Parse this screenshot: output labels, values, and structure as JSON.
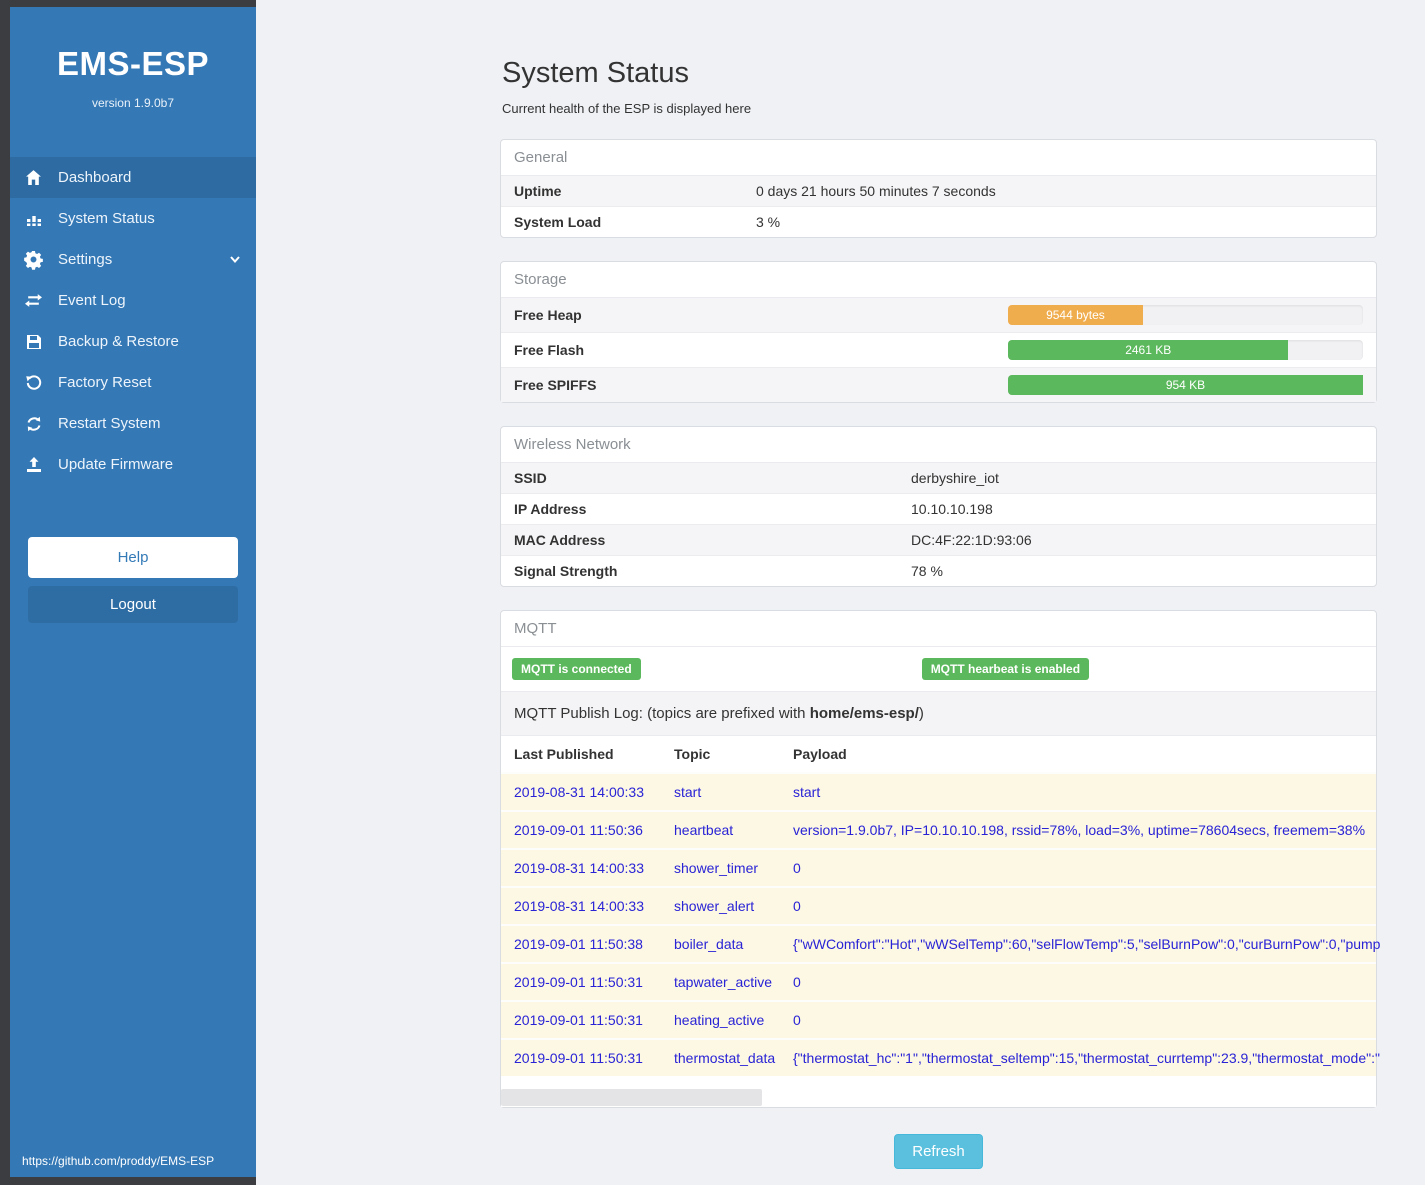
{
  "colors": {
    "sidebar_blue": "#3478b5",
    "sidebar_active": "#2d6ba2",
    "frame_dark": "#3b3d40",
    "success_green": "#5cb85c",
    "warning_orange": "#f0ad4e",
    "info_blue": "#5bc0de",
    "log_row_bg": "#fcf8e3",
    "log_text_blue": "#2a23d6"
  },
  "sidebar": {
    "brand": "EMS-ESP",
    "version": "version 1.9.0b7",
    "items": [
      {
        "label": "Dashboard",
        "icon": "home-icon"
      },
      {
        "label": "System Status",
        "icon": "system-status-icon"
      },
      {
        "label": "Settings",
        "icon": "gear-icon"
      },
      {
        "label": "Event Log",
        "icon": "exchange-icon"
      },
      {
        "label": "Backup & Restore",
        "icon": "save-icon"
      },
      {
        "label": "Factory Reset",
        "icon": "undo-icon"
      },
      {
        "label": "Restart System",
        "icon": "refresh-icon"
      },
      {
        "label": "Update Firmware",
        "icon": "upload-icon"
      }
    ],
    "help_label": "Help",
    "logout_label": "Logout",
    "footer_link": "https://github.com/proddy/EMS-ESP"
  },
  "page": {
    "title": "System Status",
    "subtitle": "Current health of the ESP is displayed here",
    "refresh_label": "Refresh"
  },
  "general": {
    "header": "General",
    "rows": [
      {
        "label": "Uptime",
        "value": "0 days 21 hours 50 minutes 7 seconds"
      },
      {
        "label": "System Load",
        "value": "3 %"
      }
    ]
  },
  "storage": {
    "header": "Storage",
    "rows": [
      {
        "label": "Free Heap",
        "bar_label": "9544 bytes",
        "percent": 38,
        "color": "#f0ad4e"
      },
      {
        "label": "Free Flash",
        "bar_label": "2461 KB",
        "percent": 79,
        "color": "#5cb85c"
      },
      {
        "label": "Free SPIFFS",
        "bar_label": "954 KB",
        "percent": 100,
        "color": "#5cb85c"
      }
    ]
  },
  "wireless": {
    "header": "Wireless Network",
    "rows": [
      {
        "label": "SSID",
        "value": "derbyshire_iot"
      },
      {
        "label": "IP Address",
        "value": "10.10.10.198"
      },
      {
        "label": "MAC Address",
        "value": "DC:4F:22:1D:93:06"
      },
      {
        "label": "Signal Strength",
        "value": "78 %"
      }
    ]
  },
  "mqtt": {
    "header": "MQTT",
    "badges": [
      "MQTT is connected",
      "MQTT hearbeat is enabled"
    ],
    "publish_log_prefix": "MQTT Publish Log: (topics are prefixed with ",
    "publish_log_bold": "home/ems-esp/",
    "publish_log_suffix": ")",
    "table": {
      "columns": [
        "Last Published",
        "Topic",
        "Payload"
      ],
      "rows": [
        [
          "2019-08-31 14:00:33",
          "start",
          "start"
        ],
        [
          "2019-09-01 11:50:36",
          "heartbeat",
          "version=1.9.0b7, IP=10.10.10.198, rssid=78%, load=3%, uptime=78604secs, freemem=38%"
        ],
        [
          "2019-08-31 14:00:33",
          "shower_timer",
          "0"
        ],
        [
          "2019-08-31 14:00:33",
          "shower_alert",
          "0"
        ],
        [
          "2019-09-01 11:50:38",
          "boiler_data",
          "{\"wWComfort\":\"Hot\",\"wWSelTemp\":60,\"selFlowTemp\":5,\"selBurnPow\":0,\"curBurnPow\":0,\"pump"
        ],
        [
          "2019-09-01 11:50:31",
          "tapwater_active",
          "0"
        ],
        [
          "2019-09-01 11:50:31",
          "heating_active",
          "0"
        ],
        [
          "2019-09-01 11:50:31",
          "thermostat_data",
          "{\"thermostat_hc\":\"1\",\"thermostat_seltemp\":15,\"thermostat_currtemp\":23.9,\"thermostat_mode\":\""
        ]
      ]
    }
  }
}
